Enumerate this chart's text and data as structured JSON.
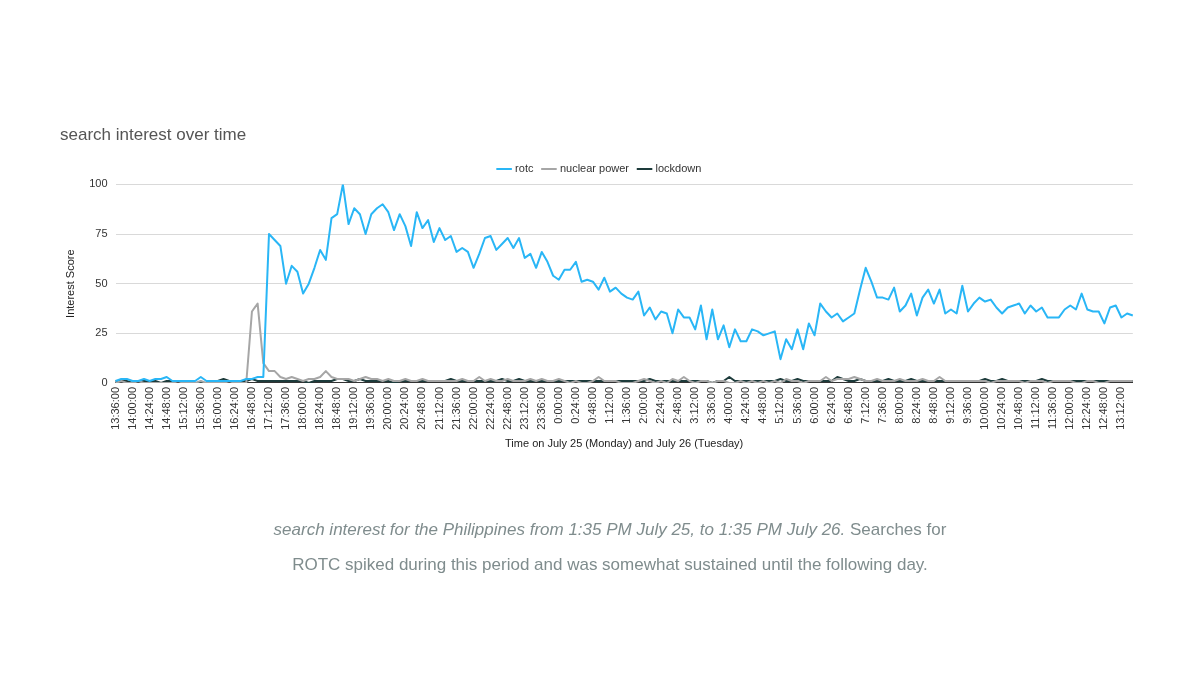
{
  "chart_data": {
    "type": "line",
    "title": "search interest over time",
    "xlabel": "Time on July 25 (Monday) and July 26 (Tuesday)",
    "ylabel": "Interest Score",
    "categories": [
      "13:36:00",
      null,
      null,
      "14:00:00",
      null,
      null,
      "14:24:00",
      null,
      null,
      "14:48:00",
      null,
      null,
      "15:12:00",
      null,
      null,
      "15:36:00",
      null,
      null,
      "16:00:00",
      null,
      null,
      "16:24:00",
      null,
      null,
      "16:48:00",
      null,
      null,
      "17:12:00",
      null,
      null,
      "17:36:00",
      null,
      null,
      "18:00:00",
      null,
      null,
      "18:24:00",
      null,
      null,
      "18:48:00",
      null,
      null,
      "19:12:00",
      null,
      null,
      "19:36:00",
      null,
      null,
      "20:00:00",
      null,
      null,
      "20:24:00",
      null,
      null,
      "20:48:00",
      null,
      null,
      "21:12:00",
      null,
      null,
      "21:36:00",
      null,
      null,
      "22:00:00",
      null,
      null,
      "22:24:00",
      null,
      null,
      "22:48:00",
      null,
      null,
      "23:12:00",
      null,
      null,
      "23:36:00",
      null,
      null,
      "0:00:00",
      null,
      null,
      "0:24:00",
      null,
      null,
      "0:48:00",
      null,
      null,
      "1:12:00",
      null,
      null,
      "1:36:00",
      null,
      null,
      "2:00:00",
      null,
      null,
      "2:24:00",
      null,
      null,
      "2:48:00",
      null,
      null,
      "3:12:00",
      null,
      null,
      "3:36:00",
      null,
      null,
      "4:00:00",
      null,
      null,
      "4:24:00",
      null,
      null,
      "4:48:00",
      null,
      null,
      "5:12:00",
      null,
      null,
      "5:36:00",
      null,
      null,
      "6:00:00",
      null,
      null,
      "6:24:00",
      null,
      null,
      "6:48:00",
      null,
      null,
      "7:12:00",
      null,
      null,
      "7:36:00",
      null,
      null,
      "8:00:00",
      null,
      null,
      "8:24:00",
      null,
      null,
      "8:48:00",
      null,
      null,
      "9:12:00",
      null,
      null,
      "9:36:00",
      null,
      null,
      "10:00:00",
      null,
      null,
      "10:24:00",
      null,
      null,
      "10:48:00",
      null,
      null,
      "11:12:00",
      null,
      null,
      "11:36:00",
      null,
      null,
      "12:00:00",
      null,
      null,
      "12:24:00",
      null,
      null,
      "12:48:00",
      null,
      null,
      "13:12:00",
      null,
      null
    ],
    "series": [
      {
        "name": "rotc",
        "color": "#29b6f6",
        "values": [
          1,
          2,
          2,
          1,
          1,
          2,
          1,
          2,
          2,
          3,
          1,
          1,
          1,
          1,
          1,
          3,
          1,
          1,
          1,
          1,
          1,
          1,
          1,
          2,
          2,
          3,
          3,
          75,
          72,
          69,
          50,
          59,
          56,
          45,
          50,
          58,
          67,
          62,
          83,
          85,
          100,
          80,
          88,
          85,
          75,
          85,
          88,
          90,
          86,
          77,
          85,
          79,
          69,
          86,
          78,
          82,
          71,
          78,
          72,
          74,
          66,
          68,
          66,
          58,
          65,
          73,
          74,
          67,
          70,
          73,
          68,
          73,
          63,
          65,
          58,
          66,
          61,
          54,
          52,
          57,
          57,
          61,
          51,
          52,
          51,
          47,
          53,
          46,
          48,
          45,
          43,
          42,
          46,
          34,
          38,
          32,
          36,
          35,
          25,
          37,
          33,
          33,
          27,
          39,
          22,
          37,
          22,
          29,
          18,
          27,
          21,
          21,
          27,
          26,
          24,
          25,
          26,
          12,
          22,
          17,
          27,
          17,
          30,
          24,
          40,
          36,
          33,
          35,
          31,
          33,
          35,
          47,
          58,
          51,
          43,
          43,
          42,
          48,
          36,
          39,
          45,
          34,
          43,
          47,
          40,
          47,
          35,
          37,
          35,
          49,
          36,
          40,
          43,
          41,
          42,
          38,
          35,
          38,
          39,
          40,
          35,
          39,
          36,
          38,
          33,
          33,
          33,
          37,
          39,
          37,
          45,
          37,
          36,
          36,
          30,
          38,
          39,
          33,
          35,
          34
        ]
      },
      {
        "name": "nuclear power",
        "color": "#a6a6a6",
        "values": [
          0,
          1,
          0,
          0,
          1,
          0,
          0,
          0,
          0,
          0,
          0,
          1,
          0,
          0,
          0,
          1,
          0,
          0,
          0,
          0,
          1,
          0,
          0,
          0,
          36,
          40,
          10,
          6,
          6,
          3,
          2,
          3,
          2,
          1,
          2,
          2,
          3,
          6,
          3,
          2,
          2,
          2,
          1,
          2,
          3,
          2,
          2,
          1,
          2,
          1,
          1,
          2,
          1,
          1,
          2,
          1,
          1,
          1,
          1,
          1,
          1,
          2,
          1,
          1,
          3,
          1,
          2,
          1,
          1,
          2,
          1,
          1,
          1,
          2,
          1,
          2,
          1,
          1,
          2,
          1,
          0,
          1,
          0,
          0,
          1,
          3,
          1,
          1,
          1,
          0,
          0,
          0,
          1,
          2,
          1,
          0,
          1,
          0,
          2,
          1,
          3,
          1,
          0,
          1,
          1,
          0,
          1,
          1,
          0,
          0,
          1,
          0,
          1,
          0,
          1,
          0,
          1,
          0,
          2,
          1,
          1,
          0,
          1,
          1,
          1,
          3,
          1,
          2,
          2,
          2,
          3,
          2,
          1,
          1,
          2,
          1,
          1,
          1,
          2,
          1,
          1,
          1,
          2,
          1,
          1,
          3,
          1,
          1,
          1,
          1,
          1,
          1,
          1,
          1,
          0,
          1,
          1,
          1,
          1,
          1,
          0,
          1,
          1,
          1,
          0,
          1,
          1,
          1,
          1,
          0,
          0,
          1,
          1,
          0,
          0,
          1,
          1,
          1,
          1,
          1
        ]
      },
      {
        "name": "lockdown",
        "color": "#1d3b3b",
        "values": [
          1,
          1,
          1,
          0,
          1,
          1,
          1,
          1,
          0,
          1,
          1,
          1,
          1,
          0,
          0,
          0,
          0,
          0,
          1,
          2,
          1,
          1,
          1,
          1,
          2,
          1,
          1,
          1,
          1,
          1,
          1,
          1,
          1,
          1,
          0,
          1,
          1,
          1,
          1,
          2,
          2,
          1,
          1,
          2,
          1,
          1,
          1,
          1,
          1,
          0,
          1,
          1,
          1,
          1,
          1,
          1,
          1,
          1,
          1,
          2,
          1,
          1,
          1,
          1,
          1,
          1,
          1,
          1,
          2,
          1,
          1,
          2,
          1,
          1,
          1,
          1,
          1,
          1,
          1,
          1,
          1,
          1,
          1,
          1,
          1,
          1,
          1,
          1,
          1,
          1,
          1,
          1,
          1,
          1,
          2,
          1,
          1,
          1,
          1,
          1,
          1,
          1,
          1,
          1,
          1,
          0,
          1,
          1,
          3,
          1,
          1,
          1,
          1,
          1,
          1,
          1,
          1,
          2,
          1,
          1,
          2,
          1,
          1,
          1,
          1,
          1,
          1,
          3,
          2,
          1,
          1,
          2,
          1,
          1,
          1,
          1,
          2,
          1,
          1,
          1,
          2,
          1,
          1,
          1,
          1,
          1,
          1,
          1,
          1,
          1,
          1,
          1,
          1,
          2,
          1,
          1,
          2,
          1,
          1,
          1,
          1,
          1,
          1,
          2,
          1,
          1,
          1,
          1,
          1,
          1,
          1,
          1,
          1,
          1,
          1,
          1,
          1,
          1,
          1,
          1
        ]
      }
    ],
    "ylim": [
      0,
      100
    ],
    "yticks": [
      0,
      25,
      50,
      75,
      100
    ],
    "grid": "y",
    "legend": "top",
    "marker": "none",
    "line_style": "solid",
    "annotations": [
      "search interest for the Philippines from 1:35 PM July 25, to 1:35 PM July 26.",
      "Searches for ROTC spiked during this period and was somewhat sustained until the following day."
    ]
  }
}
